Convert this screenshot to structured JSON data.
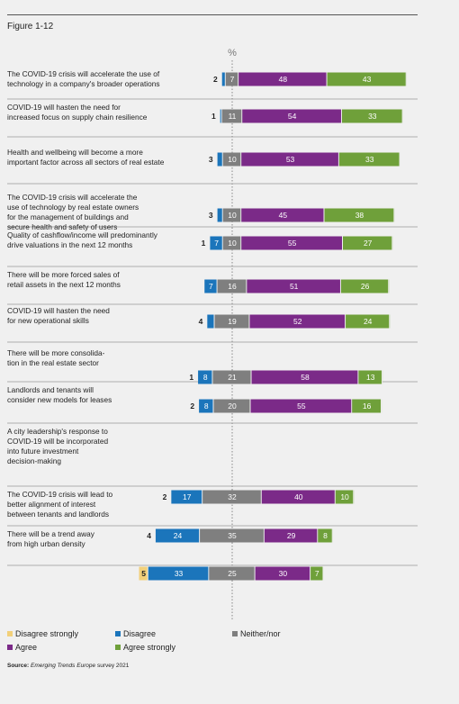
{
  "figure_label": "Figure 1-12",
  "chart_data": {
    "type": "bar",
    "stacked": "diverging",
    "unit_label": "%",
    "categories": [
      "The COVID-19 crisis will accelerate the use of technology in a company's broader operations",
      "COVID-19 will hasten the need for increased focus on supply chain resilience",
      "Health and wellbeing will become a more important factor across all sectors of real estate",
      "The COVID-19 crisis will accelerate the use of technology by real estate owners for the management of buildings and secure health and safety of users",
      "Quality of cashflow/income will predominantly drive valuations in the next 12 months",
      "There will be more forced sales of retail assets in the next 12 months",
      "COVID-19 will hasten the need for new operational skills",
      "There will be more consolidation in the real estate sector",
      "Landlords and tenants will consider new models for leases",
      "A city leadership's response to COVID-19 will be incorporated into future investment decision-making",
      "The COVID-19 crisis will lead to better alignment of interest between tenants and landlords",
      "There will be a trend away from high urban density"
    ],
    "row_label_lines": [
      [
        "The COVID-19 crisis will accelerate the use of",
        "technology in a company's broader operations"
      ],
      [
        "COVID-19 will hasten the need for",
        "increased focus on supply chain resilience"
      ],
      [
        "Health and wellbeing will become a more",
        "important factor across all sectors of real estate"
      ],
      [
        "The COVID-19 crisis will accelerate the",
        "use of technology by real estate owners",
        "for the management of buildings and",
        "secure health and safety of users"
      ],
      [
        "Quality of cashflow/income will predominantly",
        "drive valuations in the next 12 months"
      ],
      [
        "There will be more forced sales of",
        "retail assets in the next 12 months"
      ],
      [
        "COVID-19 will hasten the need",
        "for new operational skills"
      ],
      [
        "There will be more consolida-",
        "tion in the real estate sector"
      ],
      [
        "Landlords and tenants will",
        "consider new models for leases"
      ],
      [
        "A city leadership's response to",
        "COVID-19 will be incorporated",
        "into future investment",
        "decision-making"
      ],
      [
        "The COVID-19 crisis will lead to",
        "better alignment of interest",
        "between tenants and landlords"
      ],
      [
        "There will be a trend away",
        "from high urban density"
      ]
    ],
    "series": [
      {
        "name": "Disagree strongly",
        "color": "#f2d07a",
        "values": [
          0,
          0,
          0,
          0,
          0,
          0,
          0,
          0,
          0,
          0,
          0,
          5
        ]
      },
      {
        "name": "Disagree",
        "color": "#1b75bb",
        "values": [
          2,
          1,
          3,
          3,
          7,
          7,
          4,
          8,
          8,
          17,
          24,
          33
        ]
      },
      {
        "name": "Neither/nor",
        "color": "#7f7f7f",
        "values": [
          7,
          11,
          10,
          10,
          10,
          16,
          19,
          21,
          20,
          32,
          35,
          25
        ]
      },
      {
        "name": "Agree",
        "color": "#7b2a88",
        "values": [
          48,
          54,
          53,
          45,
          55,
          51,
          52,
          58,
          55,
          40,
          29,
          30
        ]
      },
      {
        "name": "Agree strongly",
        "color": "#6fa03a",
        "values": [
          43,
          33,
          33,
          38,
          27,
          26,
          24,
          13,
          16,
          10,
          8,
          7
        ]
      }
    ],
    "disagree_labels": [
      "2",
      "1",
      "3",
      "3",
      "1",
      "",
      "4",
      "1",
      "2",
      "2",
      "4",
      "5"
    ],
    "label_strategy_note": "",
    "legend_rows": [
      [
        {
          "name": "Disagree strongly",
          "color": "#f2d07a"
        },
        {
          "name": "Disagree",
          "color": "#1b75bb"
        },
        {
          "name": "Neither/nor",
          "color": "#7f7f7f"
        }
      ],
      [
        {
          "name": "Agree",
          "color": "#7b2a88"
        },
        {
          "name": "Agree strongly",
          "color": "#6fa03a"
        }
      ]
    ]
  },
  "source": {
    "prefix": "Source:",
    "title": "Emerging Trends Europe",
    "suffix": " survey 2021"
  }
}
